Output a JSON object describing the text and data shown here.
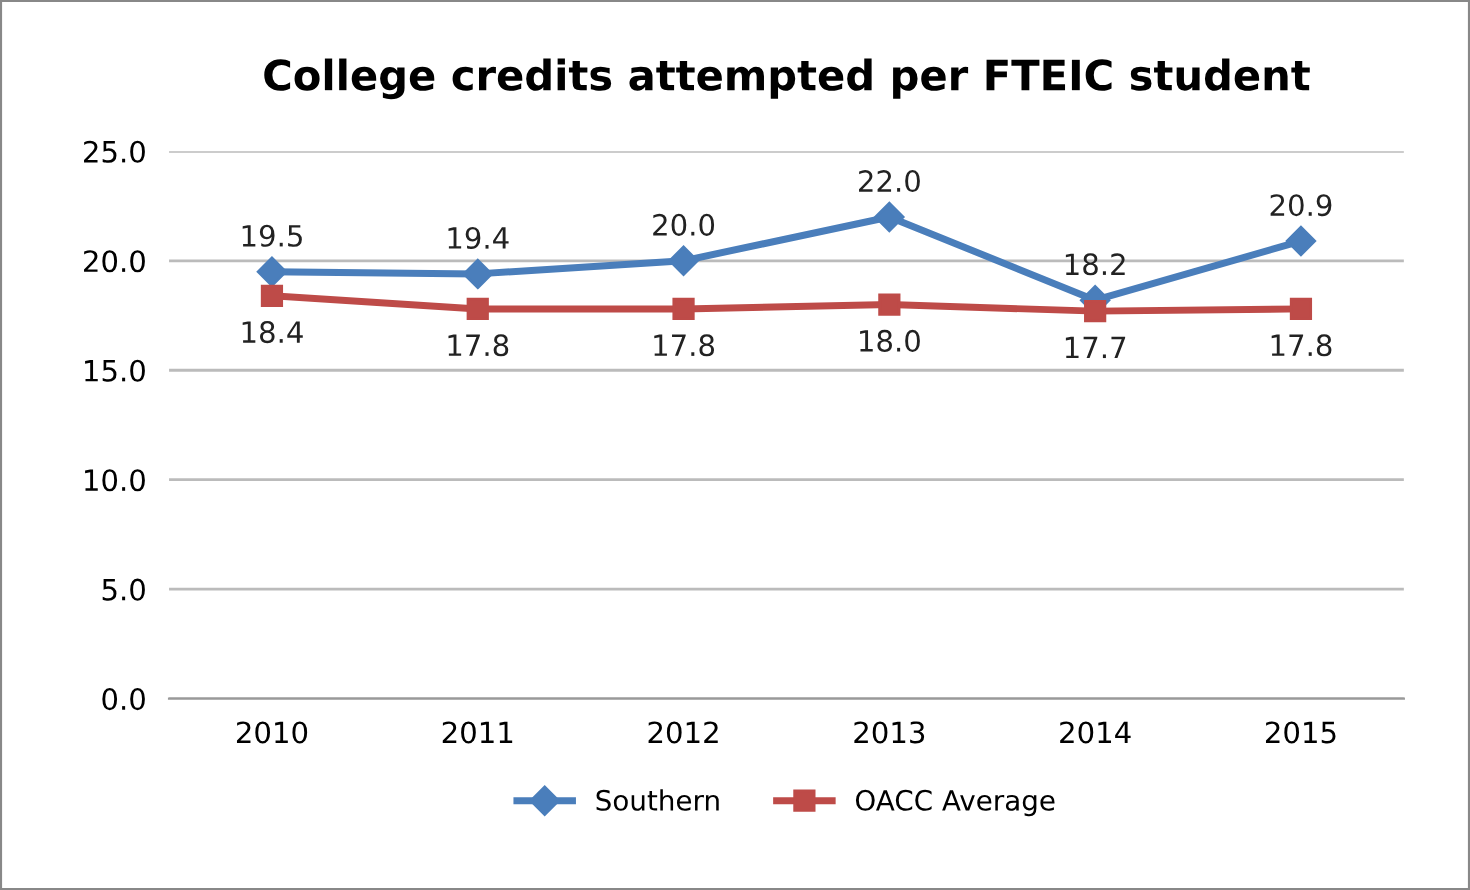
{
  "chart_data": {
    "type": "line",
    "title": "College credits attempted per FTEIC student",
    "categories": [
      "2010",
      "2011",
      "2012",
      "2013",
      "2014",
      "2015"
    ],
    "series": [
      {
        "name": "Southern",
        "color": "#4a7ebb",
        "marker": "diamond",
        "values": [
          19.5,
          19.4,
          20.0,
          22.0,
          18.2,
          20.9
        ],
        "value_labels": [
          "19.5",
          "19.4",
          "20.0",
          "22.0",
          "18.2",
          "20.9"
        ]
      },
      {
        "name": "OACC Average",
        "color": "#be4b48",
        "marker": "square",
        "values": [
          18.4,
          17.8,
          17.8,
          18.0,
          17.7,
          17.8
        ],
        "value_labels": [
          "18.4",
          "17.8",
          "17.8",
          "18.0",
          "17.7",
          "17.8"
        ]
      }
    ],
    "ylim": [
      0,
      25
    ],
    "yticks": [
      {
        "value": 0,
        "label": "0.0"
      },
      {
        "value": 5,
        "label": "5.0"
      },
      {
        "value": 10,
        "label": "10.0"
      },
      {
        "value": 15,
        "label": "15.0"
      },
      {
        "value": 20,
        "label": "20.0"
      },
      {
        "value": 25,
        "label": "25.0"
      }
    ],
    "grid": "y",
    "legend": "bottom",
    "line_style": "solid"
  }
}
